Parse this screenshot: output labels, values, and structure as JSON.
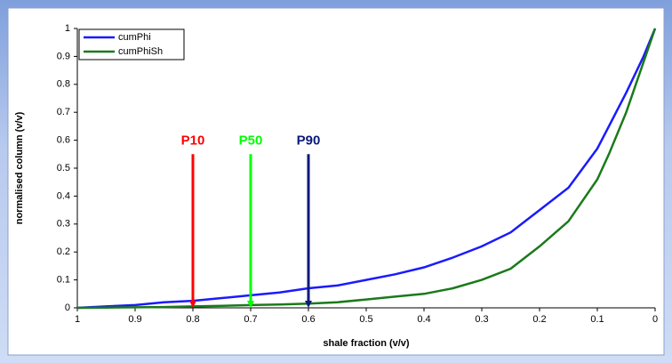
{
  "chart_data": {
    "type": "line",
    "x_label": "shale fraction (v/v)",
    "y_label": "normalised column (v/v)",
    "x": [
      1,
      0.95,
      0.9,
      0.85,
      0.8,
      0.75,
      0.7,
      0.65,
      0.6,
      0.55,
      0.5,
      0.45,
      0.4,
      0.35,
      0.3,
      0.25,
      0.2,
      0.15,
      0.1,
      0.08,
      0.05,
      0.02,
      0
    ],
    "series": [
      {
        "name": "cumPhi",
        "color": "#1a1aff",
        "values": [
          0,
          0.005,
          0.01,
          0.02,
          0.025,
          0.035,
          0.045,
          0.055,
          0.07,
          0.08,
          0.1,
          0.12,
          0.145,
          0.18,
          0.22,
          0.27,
          0.35,
          0.43,
          0.57,
          0.65,
          0.77,
          0.9,
          1
        ]
      },
      {
        "name": "cumPhiSh",
        "color": "#1a7a1a",
        "values": [
          0,
          0.001,
          0.002,
          0.003,
          0.005,
          0.007,
          0.01,
          0.012,
          0.015,
          0.02,
          0.03,
          0.04,
          0.05,
          0.07,
          0.1,
          0.14,
          0.22,
          0.31,
          0.46,
          0.55,
          0.7,
          0.88,
          1
        ]
      }
    ],
    "xlim": [
      1,
      0
    ],
    "ylim": [
      0,
      1
    ],
    "xticks": [
      1,
      0.9,
      0.8,
      0.7,
      0.6,
      0.5,
      0.4,
      0.3,
      0.2,
      0.1,
      0
    ],
    "yticks": [
      0,
      0.1,
      0.2,
      0.3,
      0.4,
      0.5,
      0.6,
      0.7,
      0.8,
      0.9,
      1
    ],
    "legend": "top-left",
    "annotations": [
      {
        "label": "P10",
        "x": 0.8,
        "y": 0.55,
        "color": "#ff0000"
      },
      {
        "label": "P50",
        "x": 0.7,
        "y": 0.55,
        "color": "#00ff00"
      },
      {
        "label": "P90",
        "x": 0.6,
        "y": 0.55,
        "color": "#0a1a7a"
      }
    ]
  }
}
